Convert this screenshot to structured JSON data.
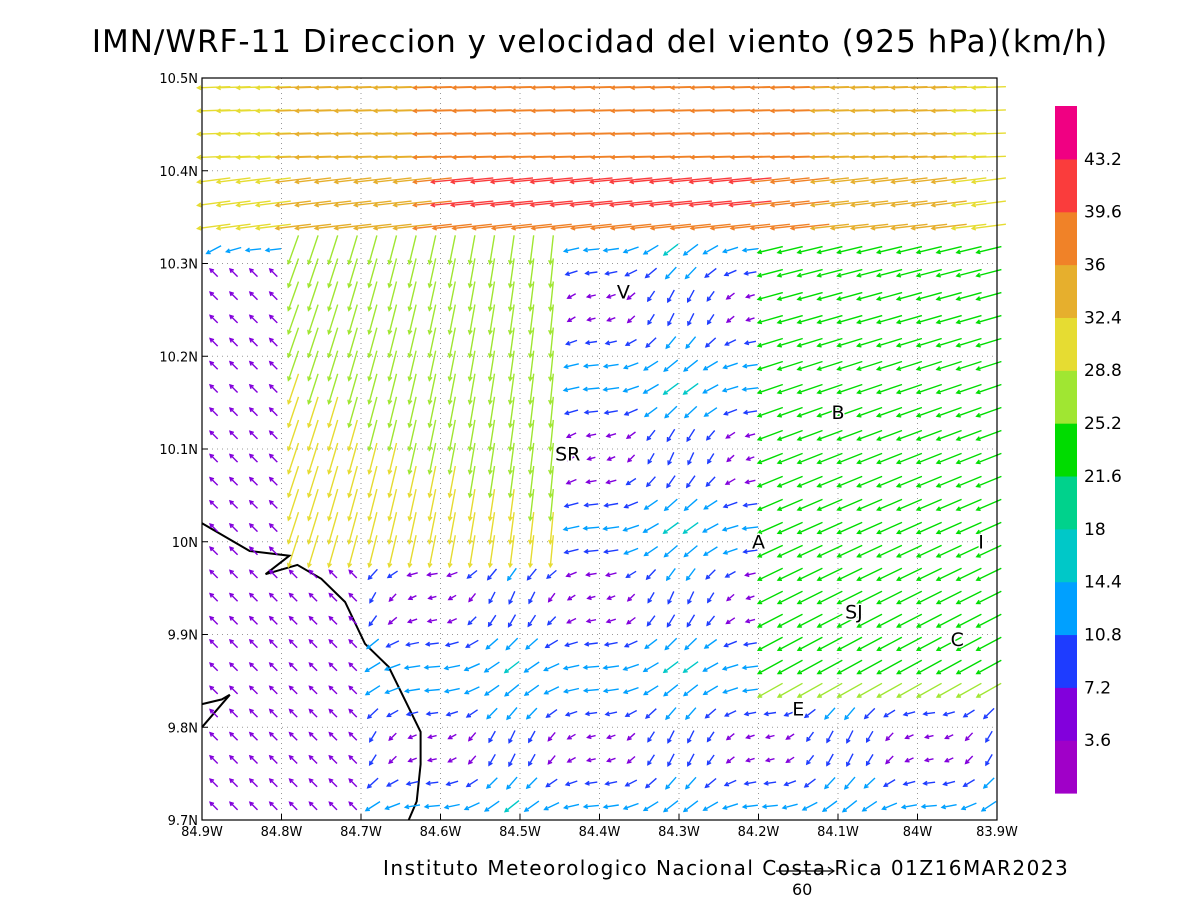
{
  "title": "IMN/WRF-11 Direccion y velocidad del viento (925 hPa)(km/h)",
  "credit": "Instituto Meteorologico Nacional Costa Rica 01Z16MAR2023",
  "reference_vector": {
    "label": "60",
    "speed_kmh": 60
  },
  "axes": {
    "lon_range": [
      -84.9,
      -83.9
    ],
    "lat_range": [
      9.7,
      10.5
    ],
    "x_ticks": [
      "84.9W",
      "84.8W",
      "84.7W",
      "84.6W",
      "84.5W",
      "84.4W",
      "84.3W",
      "84.2W",
      "84.1W",
      "84W",
      "83.9W"
    ],
    "y_ticks": [
      "9.7N",
      "9.8N",
      "9.9N",
      "10N",
      "10.1N",
      "10.2N",
      "10.3N",
      "10.4N",
      "10.5N"
    ]
  },
  "colorbar": {
    "labels": [
      "3.6",
      "7.2",
      "10.8",
      "14.4",
      "18",
      "21.6",
      "25.2",
      "28.8",
      "32.4",
      "36",
      "39.6",
      "43.2"
    ],
    "colors": [
      "#a000c8",
      "#8200dc",
      "#1e3cff",
      "#00a0ff",
      "#00c8c8",
      "#00d28c",
      "#00dc00",
      "#a0e632",
      "#e6dc32",
      "#e6af2d",
      "#f08228",
      "#fa3c3c",
      "#f00082"
    ]
  },
  "towns": [
    {
      "label": "V",
      "lon": -84.37,
      "lat": 10.27
    },
    {
      "label": "B",
      "lon": -84.1,
      "lat": 10.14
    },
    {
      "label": "SR",
      "lon": -84.44,
      "lat": 10.095
    },
    {
      "label": "A",
      "lon": -84.2,
      "lat": 10.0
    },
    {
      "label": "I",
      "lon": -83.92,
      "lat": 10.0
    },
    {
      "label": "SJ",
      "lon": -84.08,
      "lat": 9.925
    },
    {
      "label": "C",
      "lon": -83.95,
      "lat": 9.895
    },
    {
      "label": "E",
      "lon": -84.15,
      "lat": 9.82
    }
  ],
  "coastline": [
    [
      [
        -84.9,
        10.02
      ],
      [
        -84.84,
        9.99
      ],
      [
        -84.79,
        9.985
      ],
      [
        -84.82,
        9.965
      ],
      [
        -84.78,
        9.975
      ],
      [
        -84.75,
        9.96
      ],
      [
        -84.72,
        9.935
      ],
      [
        -84.695,
        9.89
      ],
      [
        -84.665,
        9.865
      ],
      [
        -84.645,
        9.83
      ],
      [
        -84.625,
        9.795
      ],
      [
        -84.625,
        9.76
      ],
      [
        -84.63,
        9.72
      ],
      [
        -84.64,
        9.7
      ]
    ],
    [
      [
        -84.9,
        9.825
      ],
      [
        -84.875,
        9.83
      ],
      [
        -84.865,
        9.835
      ],
      [
        -84.9,
        9.8
      ]
    ]
  ]
}
